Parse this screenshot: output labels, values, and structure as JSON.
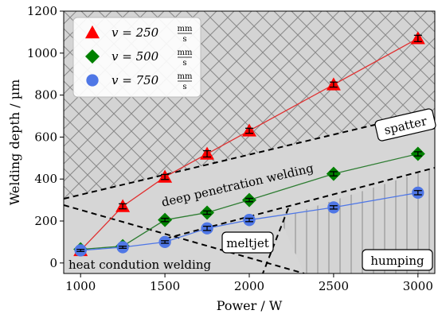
{
  "chart_data": {
    "type": "line",
    "xlabel": "Power / W",
    "ylabel": "Welding depth / µm",
    "xlim": [
      900,
      3100
    ],
    "ylim": [
      -50,
      1200
    ],
    "xticks": [
      1000,
      1500,
      2000,
      2500,
      3000
    ],
    "yticks": [
      0,
      200,
      400,
      600,
      800,
      1000,
      1200
    ],
    "grid": false,
    "legend_position": "top-left",
    "series": [
      {
        "name": "v = 250 mm/s",
        "legend_var": "v = 250",
        "legend_unit_num": "mm",
        "legend_unit_den": "s",
        "marker": "triangle",
        "color": "#ff0000",
        "line_color": "#e03030",
        "x": [
          1000,
          1250,
          1500,
          1750,
          2000,
          2500,
          3000
        ],
        "y": [
          60,
          270,
          410,
          520,
          630,
          850,
          1070
        ],
        "err": [
          8,
          12,
          12,
          15,
          12,
          12,
          15
        ]
      },
      {
        "name": "v = 500 mm/s",
        "legend_var": "v = 500",
        "legend_unit_num": "mm",
        "legend_unit_den": "s",
        "marker": "diamond",
        "color": "#008000",
        "line_color": "#2e7d32",
        "x": [
          1000,
          1250,
          1500,
          1750,
          2000,
          2500,
          3000
        ],
        "y": [
          65,
          80,
          205,
          240,
          300,
          425,
          520
        ],
        "err": [
          6,
          6,
          8,
          8,
          8,
          10,
          10
        ]
      },
      {
        "name": "v = 750 mm/s",
        "legend_var": "v = 750",
        "legend_unit_num": "mm",
        "legend_unit_den": "s",
        "marker": "circle",
        "color": "#4f77e6",
        "line_color": "#4f77e6",
        "x": [
          1000,
          1250,
          1500,
          1750,
          2000,
          2500,
          3000
        ],
        "y": [
          60,
          75,
          100,
          165,
          205,
          265,
          335
        ],
        "err": [
          5,
          5,
          6,
          10,
          8,
          8,
          10
        ]
      }
    ],
    "regions": [
      {
        "label": "spatter",
        "kind": "crosshatch"
      },
      {
        "label": "deep penetration welding",
        "kind": "gray"
      },
      {
        "label": "meltjet",
        "kind": "gray"
      },
      {
        "label": "heat condution welding",
        "kind": "gray"
      },
      {
        "label": "humping",
        "kind": "vertical-lines"
      }
    ]
  }
}
